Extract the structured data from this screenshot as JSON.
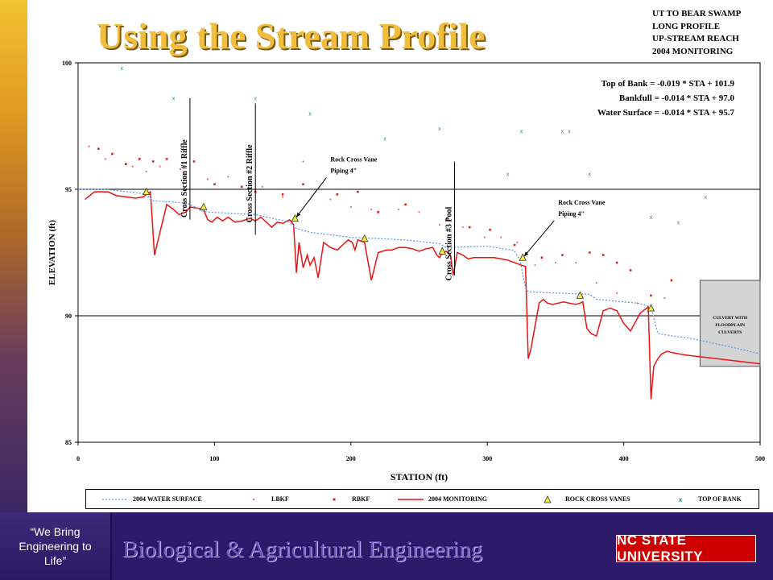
{
  "slide": {
    "title": "Using the Stream Profile",
    "tagline": "“We Bring Engineering to Life”",
    "department": "Biological & Agricultural Engineering",
    "university_logo_text": "NC STATE UNIVERSITY"
  },
  "project_info": [
    "UT TO BEAR SWAMP",
    "LONG PROFILE",
    "UP-STREAM REACH",
    "2004 MONITORING"
  ],
  "equations": [
    "Top of Bank = -0.019 * STA + 101.9",
    "Bankfull = -0.014 * STA + 97.0",
    "Water Surface = -0.014 * STA + 95.7"
  ],
  "colors": {
    "monitoring": "#ee1111",
    "water_surface": "#5b8fe8",
    "lbkf": "#e07070",
    "rbkf": "#e02020",
    "top_of_bank": "#2a8a7a",
    "vane_fill": "#f2ef3a",
    "accent_title": "#f0bd3c",
    "footer_bg": "#2e1a6b"
  },
  "chart_data": {
    "type": "line",
    "xlabel": "STATION (ft)",
    "ylabel": "ELEVATION (ft)",
    "xlim": [
      0,
      500
    ],
    "ylim": [
      85,
      100
    ],
    "xticks": [
      0,
      100,
      200,
      300,
      400,
      500
    ],
    "yticks": [
      85,
      90,
      95,
      100
    ],
    "grid": "y-major",
    "legend_position": "bottom",
    "legend": [
      "2004 WATER SURFACE",
      "LBKF",
      "RBKF",
      "2004 MONITORING",
      "ROCK CROSS VANES",
      "TOP OF BANK"
    ],
    "series": [
      {
        "name": "2004 MONITORING",
        "style": "solid-line",
        "x": [
          5,
          12,
          18,
          22,
          28,
          35,
          42,
          48,
          50,
          53,
          56,
          60,
          65,
          70,
          74,
          79,
          82,
          88,
          92,
          95,
          98,
          102,
          106,
          110,
          115,
          120,
          126,
          130,
          134,
          138,
          142,
          146,
          150,
          155,
          158,
          160,
          162,
          165,
          168,
          170,
          173,
          176,
          180,
          185,
          190,
          194,
          198,
          201,
          203,
          205,
          210,
          212,
          215,
          220,
          226,
          230,
          235,
          240,
          245,
          250,
          255,
          260,
          263,
          265,
          267,
          270,
          273,
          275,
          278,
          282,
          286,
          290,
          295,
          300,
          305,
          310,
          315,
          320,
          325,
          328,
          330,
          332,
          335,
          338,
          341,
          344,
          348,
          352,
          356,
          360,
          365,
          368,
          370,
          373,
          376,
          380,
          385,
          390,
          395,
          400,
          405,
          408,
          412,
          418,
          420,
          422,
          425,
          428,
          432,
          435,
          440,
          445,
          500
        ],
        "y": [
          94.6,
          94.9,
          94.9,
          94.9,
          94.75,
          94.7,
          94.65,
          94.7,
          94.8,
          94.9,
          92.4,
          93.3,
          94.4,
          94.2,
          94.0,
          94.1,
          94.3,
          94.25,
          94.2,
          93.8,
          93.7,
          93.9,
          93.75,
          93.9,
          93.7,
          93.75,
          93.85,
          93.75,
          93.9,
          93.7,
          93.5,
          93.7,
          93.65,
          93.8,
          93.6,
          91.7,
          92.9,
          91.9,
          92.4,
          92.0,
          92.3,
          91.5,
          92.9,
          92.7,
          92.6,
          92.8,
          93.0,
          92.9,
          92.6,
          93.0,
          92.9,
          92.3,
          91.4,
          92.5,
          92.6,
          92.6,
          92.7,
          92.7,
          92.65,
          92.55,
          92.65,
          92.7,
          92.4,
          92.3,
          92.5,
          92.55,
          92.4,
          91.6,
          92.5,
          92.4,
          92.25,
          92.3,
          92.3,
          92.3,
          92.3,
          92.25,
          92.2,
          92.1,
          92.0,
          91.95,
          88.3,
          88.7,
          89.6,
          90.5,
          90.65,
          90.5,
          90.45,
          90.5,
          90.55,
          90.5,
          90.45,
          90.5,
          90.55,
          89.5,
          89.3,
          89.2,
          90.2,
          90.3,
          90.2,
          89.7,
          89.4,
          89.7,
          90.1,
          90.35,
          86.7,
          88.0,
          88.3,
          88.5,
          88.6,
          88.55,
          88.5,
          88.45,
          88.1
        ]
      },
      {
        "name": "2004 WATER SURFACE",
        "style": "dotted-line",
        "x": [
          0,
          20,
          45,
          50,
          55,
          80,
          88,
          90,
          95,
          130,
          155,
          160,
          170,
          200,
          240,
          265,
          270,
          300,
          318,
          320,
          324,
          328,
          330,
          350,
          375,
          380,
          410,
          420,
          425,
          430,
          450,
          480,
          500
        ],
        "y": [
          95.0,
          95.0,
          94.85,
          94.8,
          94.55,
          94.45,
          94.25,
          94.15,
          94.1,
          94.0,
          93.7,
          93.45,
          93.3,
          93.1,
          93.0,
          92.85,
          92.7,
          92.75,
          92.6,
          92.55,
          92.2,
          91.1,
          90.95,
          90.9,
          90.85,
          90.65,
          90.5,
          90.35,
          89.3,
          89.25,
          89.1,
          88.75,
          88.5
        ]
      },
      {
        "name": "LBKF",
        "style": "marker-dot",
        "x": [
          8,
          20,
          40,
          50,
          60,
          75,
          95,
          110,
          125,
          135,
          150,
          165,
          185,
          200,
          215,
          235,
          250,
          265,
          282,
          298,
          310,
          322,
          335,
          350,
          365,
          380,
          395,
          410,
          430
        ],
        "y": [
          96.7,
          96.2,
          95.9,
          95.7,
          95.9,
          95.8,
          95.4,
          95.5,
          95.4,
          95.1,
          94.7,
          96.1,
          94.6,
          94.3,
          94.2,
          94.2,
          94.1,
          93.6,
          93.5,
          93.1,
          93.1,
          92.9,
          92.0,
          92.1,
          92.1,
          91.3,
          90.9,
          90.5,
          90.7
        ]
      },
      {
        "name": "RBKF",
        "style": "marker-square",
        "x": [
          15,
          25,
          35,
          45,
          55,
          65,
          85,
          100,
          120,
          130,
          150,
          165,
          190,
          205,
          220,
          240,
          270,
          287,
          302,
          320,
          340,
          355,
          375,
          385,
          395,
          405,
          420,
          435
        ],
        "y": [
          96.6,
          96.4,
          96.0,
          96.2,
          96.1,
          96.2,
          96.1,
          95.2,
          95.1,
          94.9,
          94.8,
          95.2,
          94.8,
          94.9,
          94.1,
          94.4,
          93.8,
          93.5,
          93.4,
          92.8,
          92.3,
          92.4,
          92.5,
          92.4,
          92.1,
          91.8,
          90.8,
          91.4
        ]
      },
      {
        "name": "TOP OF BANK",
        "style": "marker-x",
        "x": [
          32,
          70,
          130,
          170,
          225,
          265,
          315,
          325,
          355,
          360,
          375,
          420,
          440,
          460
        ],
        "y": [
          99.8,
          98.6,
          98.6,
          98.0,
          97.0,
          97.4,
          95.6,
          97.3,
          97.3,
          97.3,
          95.6,
          93.9,
          93.7,
          94.7
        ]
      },
      {
        "name": "ROCK CROSS VANES",
        "style": "marker-triangle",
        "x": [
          50,
          92,
          159,
          210,
          267,
          326,
          368,
          420
        ],
        "y": [
          94.9,
          94.3,
          93.85,
          93.05,
          92.55,
          92.3,
          90.8,
          90.3
        ]
      }
    ],
    "reference_lines": [
      {
        "label": "Cross Section #1 Riffle",
        "x": 82,
        "y_top": 98.6,
        "y_bottom": 93.8
      },
      {
        "label": "Cross Section #2 Riffle",
        "x": 130,
        "y_top": 98.4,
        "y_bottom": 93.2
      },
      {
        "label": "Cross Section #3 Pool",
        "x": 276,
        "y_top": 96.1,
        "y_bottom": 91.6
      }
    ],
    "annotations": [
      {
        "lines": [
          "Rock  Cross Vane",
          "Piping 4\""
        ],
        "x": 185,
        "y": 96.1,
        "arrow_to_x": 160,
        "arrow_to_y": 93.9
      },
      {
        "lines": [
          "Rock Cross Vane",
          "Piping 4\""
        ],
        "x": 352,
        "y": 94.4,
        "arrow_to_x": 327,
        "arrow_to_y": 92.35
      }
    ],
    "culvert_box": {
      "lines": [
        "CULVERT WITH",
        "FLOODPLAIN",
        "CULVERTS"
      ],
      "x0": 456,
      "x1": 500,
      "y0": 88.0,
      "y1": 91.4
    }
  }
}
